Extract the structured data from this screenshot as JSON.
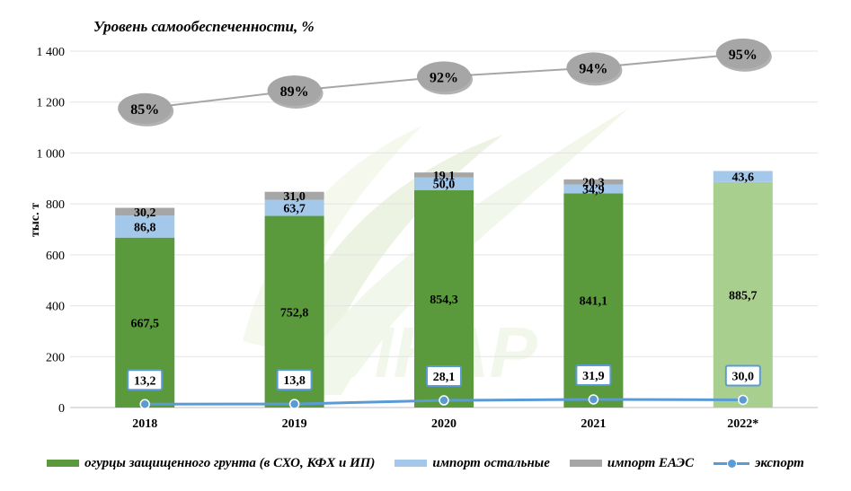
{
  "chart_data": {
    "type": "bar",
    "title": "Уровень самообеспеченности, %",
    "ylabel": "тыс. т",
    "ylim": [
      0,
      1400
    ],
    "yticks": [
      "0",
      "200",
      "400",
      "600",
      "800",
      "1 000",
      "1 200",
      "1 400"
    ],
    "ytick_values": [
      0,
      200,
      400,
      600,
      800,
      1000,
      1200,
      1400
    ],
    "categories": [
      "2018",
      "2019",
      "2020",
      "2021",
      "2022*"
    ],
    "stacked": true,
    "grid": true,
    "legend_position": "bottom",
    "series": [
      {
        "name": "огурцы защищенного грунта (в СХО, КФХ и ИП)",
        "values": [
          667.5,
          752.8,
          854.3,
          841.1,
          885.7
        ],
        "labels": [
          "667,5",
          "752,8",
          "854,3",
          "841,1",
          "885,7"
        ],
        "color": "#5a9a3c",
        "color_last": "#a9cf8e"
      },
      {
        "name": "импорт остальные",
        "values": [
          86.8,
          63.7,
          50.0,
          34.9,
          43.6
        ],
        "labels": [
          "86,8",
          "63,7",
          "50,0",
          "34,9",
          "43,6"
        ],
        "color": "#a4c8ea"
      },
      {
        "name": "импорт ЕАЭС",
        "values": [
          30.2,
          31.0,
          19.1,
          20.3,
          null
        ],
        "labels": [
          "30,2",
          "31,0",
          "19,1",
          "20,3",
          ""
        ],
        "color": "#a6a6a6"
      }
    ],
    "export": {
      "name": "экспорт",
      "values": [
        13.2,
        13.8,
        28.1,
        31.9,
        30.0
      ],
      "labels": [
        "13,2",
        "13,8",
        "28,1",
        "31,9",
        "30,0"
      ],
      "color": "#5b9bd5"
    },
    "self_sufficiency": {
      "labels": [
        "85%",
        "89%",
        "92%",
        "94%",
        "95%"
      ],
      "axis_values": [
        1175,
        1245,
        1300,
        1335,
        1390
      ],
      "color": "#a6a6a6"
    },
    "watermark": "ИКАР"
  }
}
